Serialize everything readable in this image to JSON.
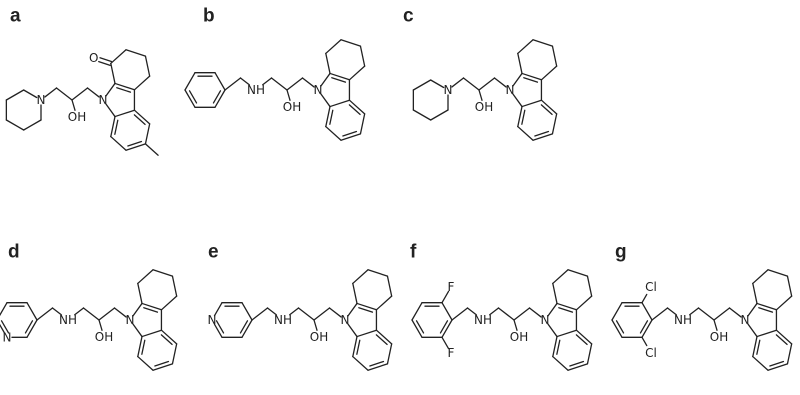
{
  "panels": [
    {
      "label": "a",
      "atoms": [
        "O",
        "N",
        "OH",
        "N"
      ]
    },
    {
      "label": "b",
      "atoms": [
        "NH",
        "OH",
        "N"
      ]
    },
    {
      "label": "c",
      "atoms": [
        "N",
        "OH",
        "N"
      ]
    },
    {
      "label": "d",
      "atoms": [
        "N",
        "NH",
        "OH",
        "N"
      ]
    },
    {
      "label": "e",
      "atoms": [
        "N",
        "NH",
        "OH",
        "N"
      ]
    },
    {
      "label": "f",
      "atoms": [
        "F",
        "F",
        "NH",
        "OH",
        "N"
      ]
    },
    {
      "label": "g",
      "atoms": [
        "Cl",
        "Cl",
        "NH",
        "OH",
        "N"
      ]
    }
  ]
}
